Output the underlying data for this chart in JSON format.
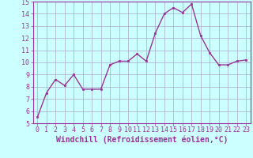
{
  "x": [
    0,
    1,
    2,
    3,
    4,
    5,
    6,
    7,
    8,
    9,
    10,
    11,
    12,
    13,
    14,
    15,
    16,
    17,
    18,
    19,
    20,
    21,
    22,
    23
  ],
  "y": [
    5.5,
    7.5,
    8.6,
    8.1,
    9.0,
    7.8,
    7.8,
    7.8,
    9.8,
    10.1,
    10.1,
    10.7,
    10.1,
    12.4,
    14.0,
    14.5,
    14.1,
    14.8,
    12.2,
    10.8,
    9.8,
    9.8,
    10.1,
    10.2
  ],
  "line_color": "#993399",
  "marker_color": "#993399",
  "bg_color": "#ccffff",
  "grid_color": "#aaaacc",
  "axis_color": "#993399",
  "xlabel": "Windchill (Refroidissement éolien,°C)",
  "ylim": [
    5,
    15
  ],
  "xlim_min": -0.5,
  "xlim_max": 23.5,
  "yticks": [
    5,
    6,
    7,
    8,
    9,
    10,
    11,
    12,
    13,
    14,
    15
  ],
  "xticks": [
    0,
    1,
    2,
    3,
    4,
    5,
    6,
    7,
    8,
    9,
    10,
    11,
    12,
    13,
    14,
    15,
    16,
    17,
    18,
    19,
    20,
    21,
    22,
    23
  ],
  "tick_fontsize": 6,
  "xlabel_fontsize": 7
}
